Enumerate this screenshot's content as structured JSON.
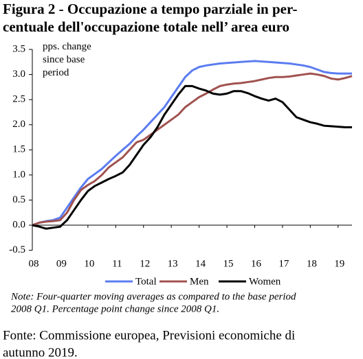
{
  "chart_data": {
    "type": "line",
    "title": [
      "Figura 2 - Occupazione a tempo parziale in per-",
      "centuale dell'occupazione totale nell’ area euro"
    ],
    "annotation": "pps. change since base period",
    "note": [
      "Note: Four-quarter moving averages as compared to the base period",
      "2008 Q1. Percentage point change since 2008 Q1."
    ],
    "source": [
      "Fonte: Commissione europea, Previsioni economiche di",
      "autunno 2019."
    ],
    "x": [
      2008,
      2008.25,
      2008.5,
      2008.75,
      2009,
      2009.25,
      2009.5,
      2009.75,
      2010,
      2010.25,
      2010.5,
      2010.75,
      2011,
      2011.25,
      2011.5,
      2011.75,
      2012,
      2012.25,
      2012.5,
      2012.75,
      2013,
      2013.25,
      2013.5,
      2013.75,
      2014,
      2014.25,
      2014.5,
      2014.75,
      2015,
      2015.25,
      2015.5,
      2015.75,
      2016,
      2016.25,
      2016.5,
      2016.75,
      2017,
      2017.25,
      2017.5,
      2017.75,
      2018,
      2018.25,
      2018.5,
      2018.75,
      2019,
      2019.25,
      2019.5
    ],
    "series": [
      {
        "name": "Total",
        "color": "#5b7cf0",
        "values": [
          0,
          0.05,
          0.08,
          0.1,
          0.15,
          0.35,
          0.55,
          0.75,
          0.92,
          1.02,
          1.12,
          1.25,
          1.38,
          1.5,
          1.62,
          1.77,
          1.9,
          2.05,
          2.2,
          2.35,
          2.55,
          2.75,
          2.95,
          3.08,
          3.15,
          3.18,
          3.2,
          3.22,
          3.23,
          3.24,
          3.25,
          3.26,
          3.27,
          3.26,
          3.25,
          3.24,
          3.23,
          3.22,
          3.2,
          3.18,
          3.15,
          3.1,
          3.05,
          3.03,
          3.02,
          3.02,
          3.02
        ]
      },
      {
        "name": "Men",
        "color": "#a0524f",
        "values": [
          0,
          0.05,
          0.07,
          0.08,
          0.1,
          0.25,
          0.5,
          0.7,
          0.8,
          0.88,
          1.0,
          1.15,
          1.25,
          1.35,
          1.5,
          1.65,
          1.7,
          1.8,
          1.9,
          2.0,
          2.1,
          2.2,
          2.35,
          2.45,
          2.55,
          2.62,
          2.7,
          2.77,
          2.8,
          2.82,
          2.83,
          2.85,
          2.87,
          2.9,
          2.93,
          2.95,
          2.95,
          2.96,
          2.98,
          3.0,
          3.02,
          3.0,
          2.97,
          2.92,
          2.9,
          2.93,
          2.97
        ]
      },
      {
        "name": "Women",
        "color": "#000000",
        "values": [
          0,
          -0.03,
          -0.07,
          -0.05,
          -0.03,
          0.1,
          0.3,
          0.5,
          0.68,
          0.78,
          0.85,
          0.92,
          0.98,
          1.05,
          1.2,
          1.4,
          1.6,
          1.75,
          1.95,
          2.2,
          2.4,
          2.6,
          2.77,
          2.77,
          2.72,
          2.68,
          2.62,
          2.6,
          2.62,
          2.67,
          2.67,
          2.63,
          2.57,
          2.52,
          2.48,
          2.52,
          2.45,
          2.3,
          2.15,
          2.1,
          2.05,
          2.02,
          1.98,
          1.97,
          1.96,
          1.95,
          1.95
        ]
      }
    ],
    "xlim": [
      2008,
      2019.5
    ],
    "xticks": [
      {
        "value": 2008,
        "label": "08"
      },
      {
        "value": 2009,
        "label": "09"
      },
      {
        "value": 2010,
        "label": "10"
      },
      {
        "value": 2011,
        "label": "11"
      },
      {
        "value": 2012,
        "label": "12"
      },
      {
        "value": 2013,
        "label": "13"
      },
      {
        "value": 2014,
        "label": "14"
      },
      {
        "value": 2015,
        "label": "15"
      },
      {
        "value": 2016,
        "label": "16"
      },
      {
        "value": 2017,
        "label": "17"
      },
      {
        "value": 2018,
        "label": "18"
      },
      {
        "value": 2019,
        "label": "19"
      }
    ],
    "ylim": [
      -0.5,
      3.5
    ],
    "yticks": [
      -0.5,
      {
        "value": 0,
        "label": "0.0"
      },
      0.5,
      {
        "value": 1,
        "label": "1.0"
      },
      1.5,
      {
        "value": 2,
        "label": "2.0"
      },
      2.5,
      {
        "value": 3,
        "label": "3.0"
      },
      3.5
    ],
    "grid": false
  }
}
